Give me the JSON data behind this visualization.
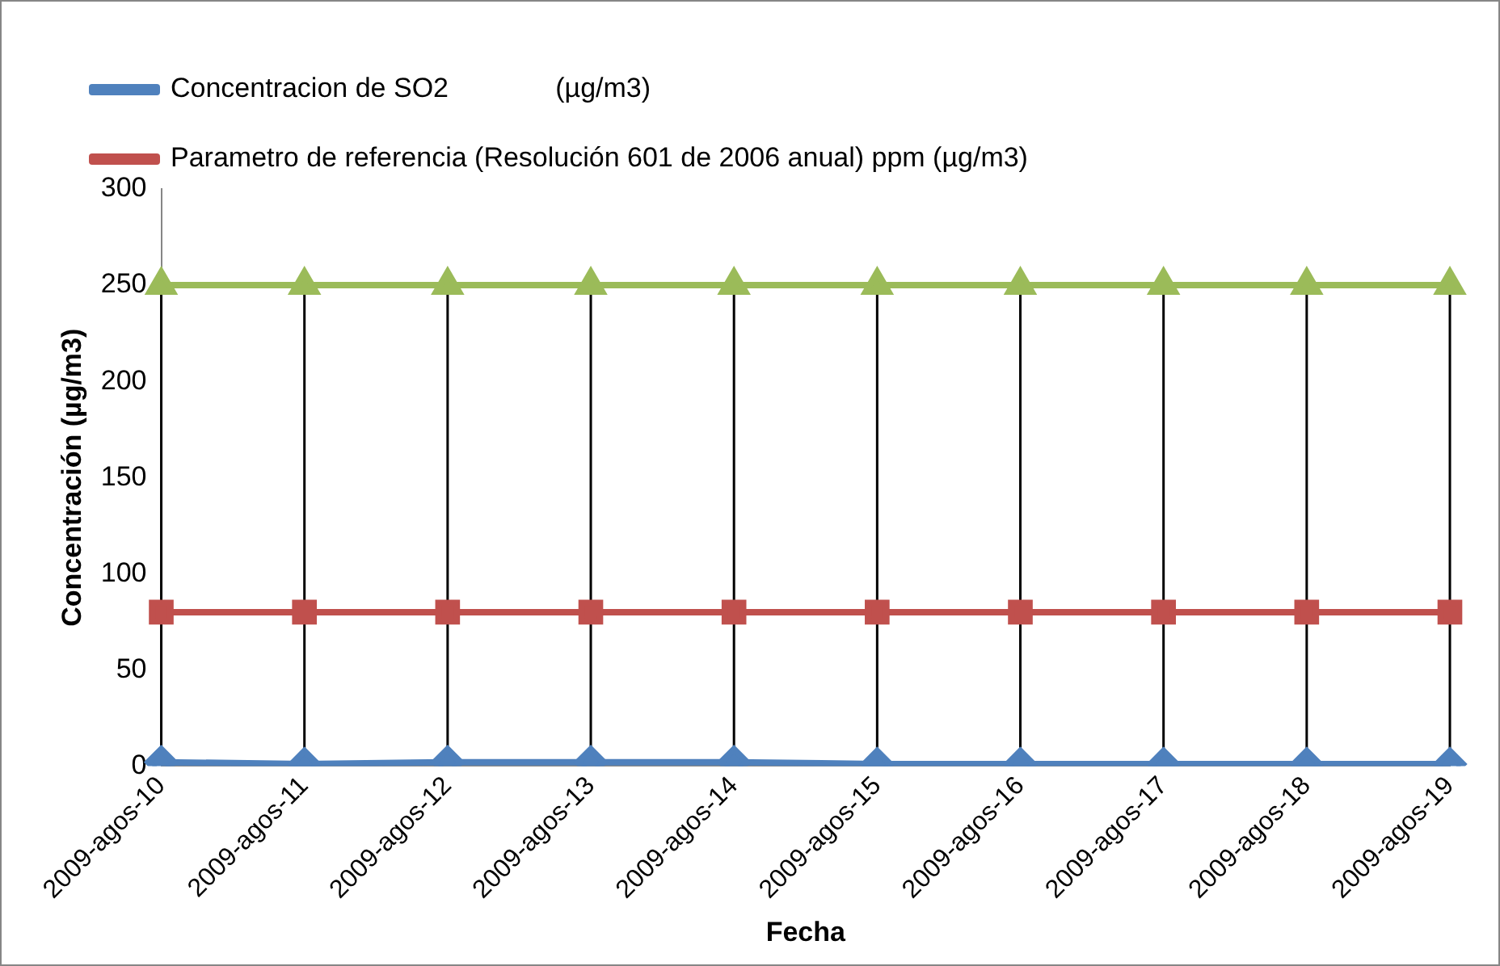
{
  "chart_data": {
    "type": "line",
    "xlabel": "Fecha",
    "ylabel": "Concentración (µg/m3)",
    "categories": [
      "2009-agos-10",
      "2009-agos-11",
      "2009-agos-12",
      "2009-agos-13",
      "2009-agos-14",
      "2009-agos-15",
      "2009-agos-16",
      "2009-agos-17",
      "2009-agos-18",
      "2009-agos-19"
    ],
    "series": [
      {
        "name": "Concentracion de SO2              (µg/m3)",
        "color": "#4f81bd",
        "marker": "diamond",
        "values": [
          2,
          1,
          2,
          2,
          2,
          1,
          1,
          1,
          1,
          1
        ]
      },
      {
        "name": "Parametro de referencia (Resolución 601 de 2006 anual) ppm (µg/m3)",
        "color": "#c0504d",
        "marker": "square",
        "values": [
          80,
          80,
          80,
          80,
          80,
          80,
          80,
          80,
          80,
          80
        ]
      },
      {
        "color": "#9bbb59",
        "marker": "triangle",
        "values": [
          250,
          250,
          250,
          250,
          250,
          250,
          250,
          250,
          250,
          250
        ]
      }
    ],
    "ylim": [
      0,
      300
    ],
    "yticks": [
      0,
      50,
      100,
      150,
      200,
      250,
      300
    ],
    "grid": false,
    "legend": "top"
  }
}
